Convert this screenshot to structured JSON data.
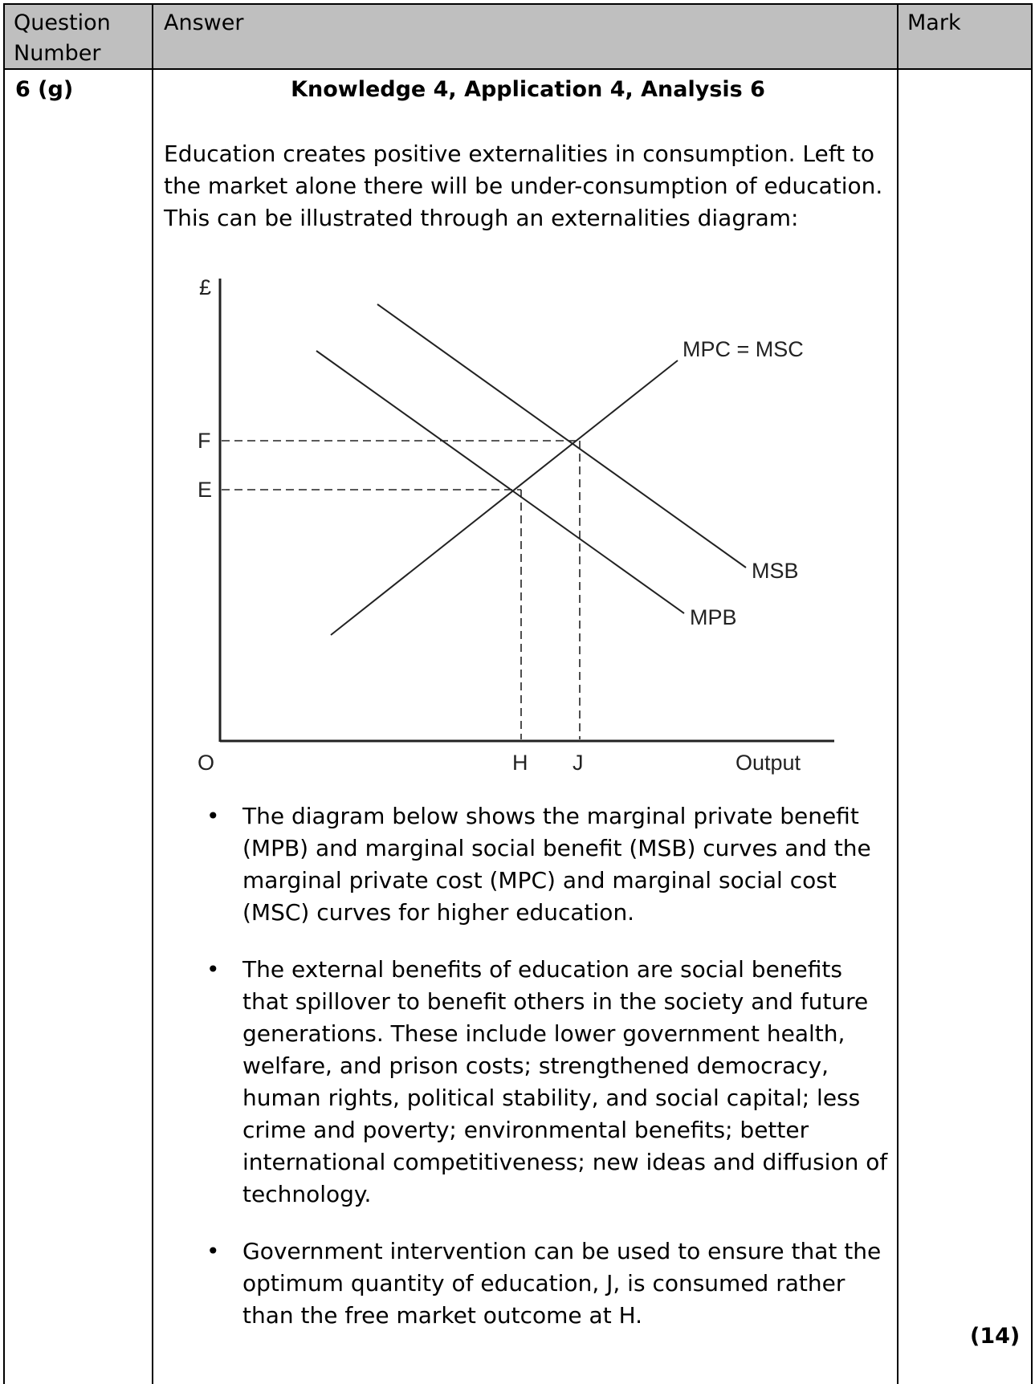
{
  "header": {
    "question_number": "Question Number",
    "answer": "Answer",
    "mark": "Mark"
  },
  "row": {
    "question_number": "6 (g)",
    "heading": "Knowledge 4, Application 4, Analysis 6",
    "intro": "Education creates positive externalities in consumption. Left to the market alone there will be under-consumption of education. This can be illustrated through an externalities diagram:",
    "diagram": {
      "y_axis_label": "£",
      "origin_label": "O",
      "x_axis_label": "Output",
      "price_labels": [
        "F",
        "E"
      ],
      "quantity_labels": [
        "H",
        "J"
      ],
      "curves": {
        "supply": "MPC = MSC",
        "msb": "MSB",
        "mpb": "MPB"
      }
    },
    "bullets": [
      "The diagram below shows the marginal private benefit (MPB) and marginal social benefit (MSB) curves and the marginal private cost (MPC) and marginal social cost (MSC) curves for higher education.",
      "The external benefits of education are social benefits that spillover to benefit others in the society and future generations. These include lower government health, welfare, and prison costs; strengthened democracy, human rights, political stability, and social capital; less crime and poverty; environmental benefits; better international competitiveness; new ideas and diffusion of technology.",
      "Government intervention can be used to ensure that the optimum quantity of education, J, is consumed rather than the free market outcome at H."
    ],
    "bullet_symbol": "•",
    "mark": "(14)"
  }
}
